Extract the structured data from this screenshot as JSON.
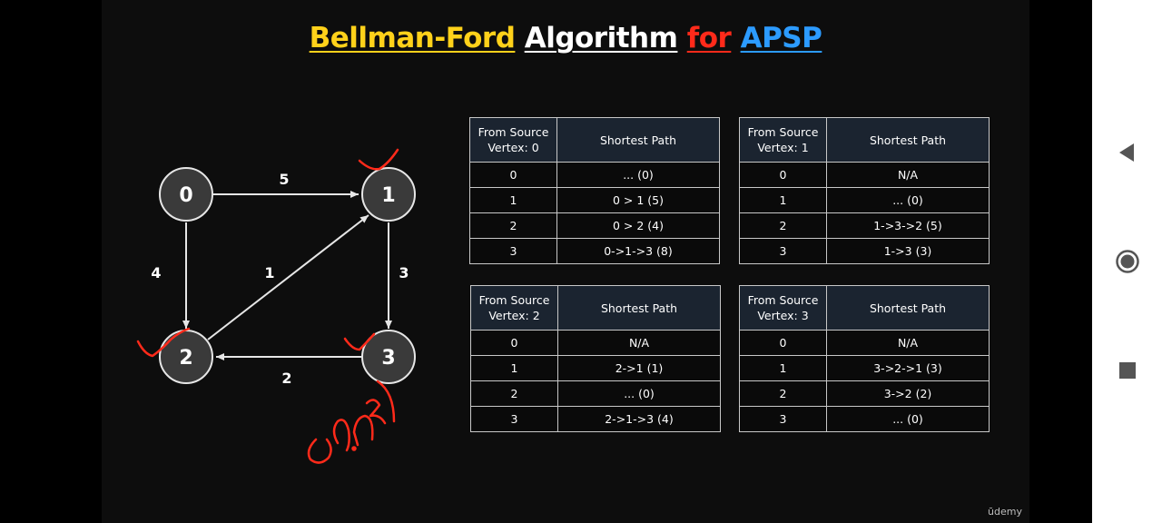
{
  "title": {
    "part1": "Bellman-Ford",
    "part2": "Algorithm",
    "part3": "for",
    "part4": "APSP"
  },
  "colors": {
    "bellman_ford": "#ffd11a",
    "for": "#ff2a1a",
    "apsp": "#2c9bff",
    "annotation": "#ff2a1a"
  },
  "graph": {
    "nodes": [
      "0",
      "1",
      "2",
      "3"
    ],
    "edges": [
      {
        "from": "0",
        "to": "1",
        "weight": "5"
      },
      {
        "from": "0",
        "to": "2",
        "weight": "4"
      },
      {
        "from": "2",
        "to": "1",
        "weight": "1"
      },
      {
        "from": "1",
        "to": "3",
        "weight": "3"
      },
      {
        "from": "3",
        "to": "2",
        "weight": "2"
      }
    ]
  },
  "tables": [
    {
      "header_source": "From Source\nVertex: 0",
      "header_path": "Shortest Path",
      "rows": [
        {
          "vertex": "0",
          "path": "... (0)"
        },
        {
          "vertex": "1",
          "path": "0 > 1  (5)"
        },
        {
          "vertex": "2",
          "path": "0 > 2  (4)"
        },
        {
          "vertex": "3",
          "path": "0->1->3  (8)"
        }
      ]
    },
    {
      "header_source": "From Source\nVertex: 1",
      "header_path": "Shortest Path",
      "rows": [
        {
          "vertex": "0",
          "path": "N/A"
        },
        {
          "vertex": "1",
          "path": "... (0)"
        },
        {
          "vertex": "2",
          "path": "1->3->2  (5)"
        },
        {
          "vertex": "3",
          "path": "1->3  (3)"
        }
      ]
    },
    {
      "header_source": "From Source\nVertex: 2",
      "header_path": "Shortest Path",
      "rows": [
        {
          "vertex": "0",
          "path": "N/A"
        },
        {
          "vertex": "1",
          "path": "2->1  (1)"
        },
        {
          "vertex": "2",
          "path": "... (0)"
        },
        {
          "vertex": "3",
          "path": "2->1->3  (4)"
        }
      ]
    },
    {
      "header_source": "From Source\nVertex: 3",
      "header_path": "Shortest Path",
      "rows": [
        {
          "vertex": "0",
          "path": "N/A"
        },
        {
          "vertex": "1",
          "path": "3->2->1  (3)"
        },
        {
          "vertex": "2",
          "path": "3->2  (2)"
        },
        {
          "vertex": "3",
          "path": "... (0)"
        }
      ]
    }
  ],
  "watermark": "ūdemy",
  "android_nav": {
    "back_icon": "triangle-back-icon",
    "home_icon": "circle-home-icon",
    "recents_icon": "square-recents-icon"
  }
}
